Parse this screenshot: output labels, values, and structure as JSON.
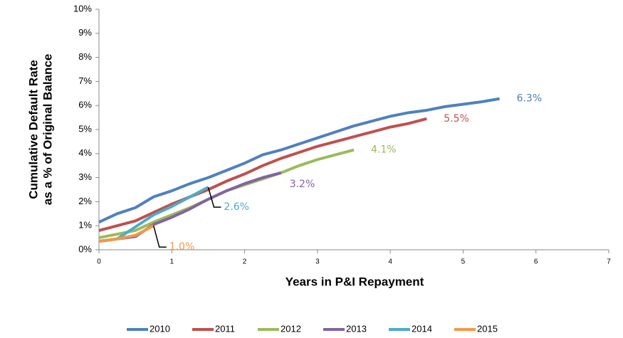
{
  "chart_data": {
    "type": "line",
    "xlabel": "Years in P&I Repayment",
    "ylabel": [
      "Cumulative Default Rate",
      "as a % of Original Balance"
    ],
    "x": [
      0,
      0.25,
      0.5,
      0.75,
      1,
      1.25,
      1.5,
      1.75,
      2,
      2.25,
      2.5,
      2.75,
      3,
      3.25,
      3.5,
      3.75,
      4,
      4.25,
      4.5,
      4.75,
      5,
      5.25,
      5.5
    ],
    "xlim": [
      0,
      7
    ],
    "xticks": [
      0,
      1,
      2,
      3,
      4,
      5,
      6,
      7
    ],
    "ylim": [
      0,
      10
    ],
    "yticks": [
      {
        "value": 0,
        "label": "0%"
      },
      {
        "value": 1,
        "label": "1%"
      },
      {
        "value": 2,
        "label": "2%"
      },
      {
        "value": 3,
        "label": "3%"
      },
      {
        "value": 4,
        "label": "4%"
      },
      {
        "value": 5,
        "label": "5%"
      },
      {
        "value": 6,
        "label": "6%"
      },
      {
        "value": 7,
        "label": "7%"
      },
      {
        "value": 8,
        "label": "8%"
      },
      {
        "value": 9,
        "label": "9%"
      },
      {
        "value": 10,
        "label": "10%"
      }
    ],
    "legend": "bottom",
    "series": [
      {
        "name": "2010",
        "color": "#4f81bd",
        "values": [
          1.15,
          1.5,
          1.75,
          2.2,
          2.45,
          2.75,
          3.0,
          3.3,
          3.6,
          3.95,
          4.15,
          4.4,
          4.65,
          4.9,
          5.15,
          5.35,
          5.55,
          5.7,
          5.8,
          5.95,
          6.05,
          6.15,
          6.28
        ],
        "value_labels": [
          null,
          null,
          null,
          null,
          null,
          null,
          null,
          null,
          null,
          null,
          null,
          null,
          null,
          null,
          null,
          null,
          null,
          null,
          null,
          null,
          null,
          null,
          "6.3%"
        ]
      },
      {
        "name": "2011",
        "color": "#c0504d",
        "values": [
          0.8,
          1.0,
          1.2,
          1.55,
          1.9,
          2.2,
          2.5,
          2.85,
          3.15,
          3.5,
          3.8,
          4.05,
          4.3,
          4.5,
          4.7,
          4.9,
          5.1,
          5.25,
          5.45,
          null,
          null,
          null,
          null
        ],
        "value_labels": [
          null,
          null,
          null,
          null,
          null,
          null,
          null,
          null,
          null,
          null,
          null,
          null,
          null,
          null,
          null,
          null,
          null,
          null,
          "5.5%",
          null,
          null,
          null,
          null
        ]
      },
      {
        "name": "2012",
        "color": "#9bbb59",
        "values": [
          0.5,
          0.65,
          0.8,
          1.15,
          1.45,
          1.75,
          2.1,
          2.45,
          2.7,
          2.95,
          3.2,
          3.5,
          3.75,
          3.95,
          4.15,
          null,
          null,
          null,
          null,
          null,
          null,
          null,
          null
        ],
        "value_labels": [
          null,
          null,
          null,
          null,
          null,
          null,
          null,
          null,
          null,
          null,
          null,
          null,
          null,
          null,
          "4.1%",
          null,
          null,
          null,
          null,
          null,
          null,
          null,
          null
        ]
      },
      {
        "name": "2013",
        "color": "#8064a2",
        "values": [
          0.35,
          0.45,
          0.55,
          1.05,
          1.35,
          1.7,
          2.1,
          2.45,
          2.75,
          3.0,
          3.2,
          null,
          null,
          null,
          null,
          null,
          null,
          null,
          null,
          null,
          null,
          null,
          null
        ],
        "value_labels": [
          null,
          null,
          null,
          null,
          null,
          null,
          null,
          null,
          null,
          null,
          "3.2%",
          null,
          null,
          null,
          null,
          null,
          null,
          null,
          null,
          null,
          null,
          null,
          null
        ]
      },
      {
        "name": "2014",
        "color": "#4bacc6",
        "values": [
          0.35,
          0.45,
          0.95,
          1.45,
          1.8,
          2.2,
          2.6,
          null,
          null,
          null,
          null,
          null,
          null,
          null,
          null,
          null,
          null,
          null,
          null,
          null,
          null,
          null,
          null
        ],
        "value_labels": [
          null,
          null,
          null,
          null,
          null,
          null,
          "2.6%",
          null,
          null,
          null,
          null,
          null,
          null,
          null,
          null,
          null,
          null,
          null,
          null,
          null,
          null,
          null,
          null
        ]
      },
      {
        "name": "2015",
        "color": "#f79646",
        "values": [
          0.35,
          0.45,
          0.6,
          1.0,
          null,
          null,
          null,
          null,
          null,
          null,
          null,
          null,
          null,
          null,
          null,
          null,
          null,
          null,
          null,
          null,
          null,
          null,
          null
        ],
        "value_labels": [
          null,
          null,
          null,
          "1.0%",
          null,
          null,
          null,
          null,
          null,
          null,
          null,
          null,
          null,
          null,
          null,
          null,
          null,
          null,
          null,
          null,
          null,
          null,
          null
        ]
      }
    ]
  }
}
